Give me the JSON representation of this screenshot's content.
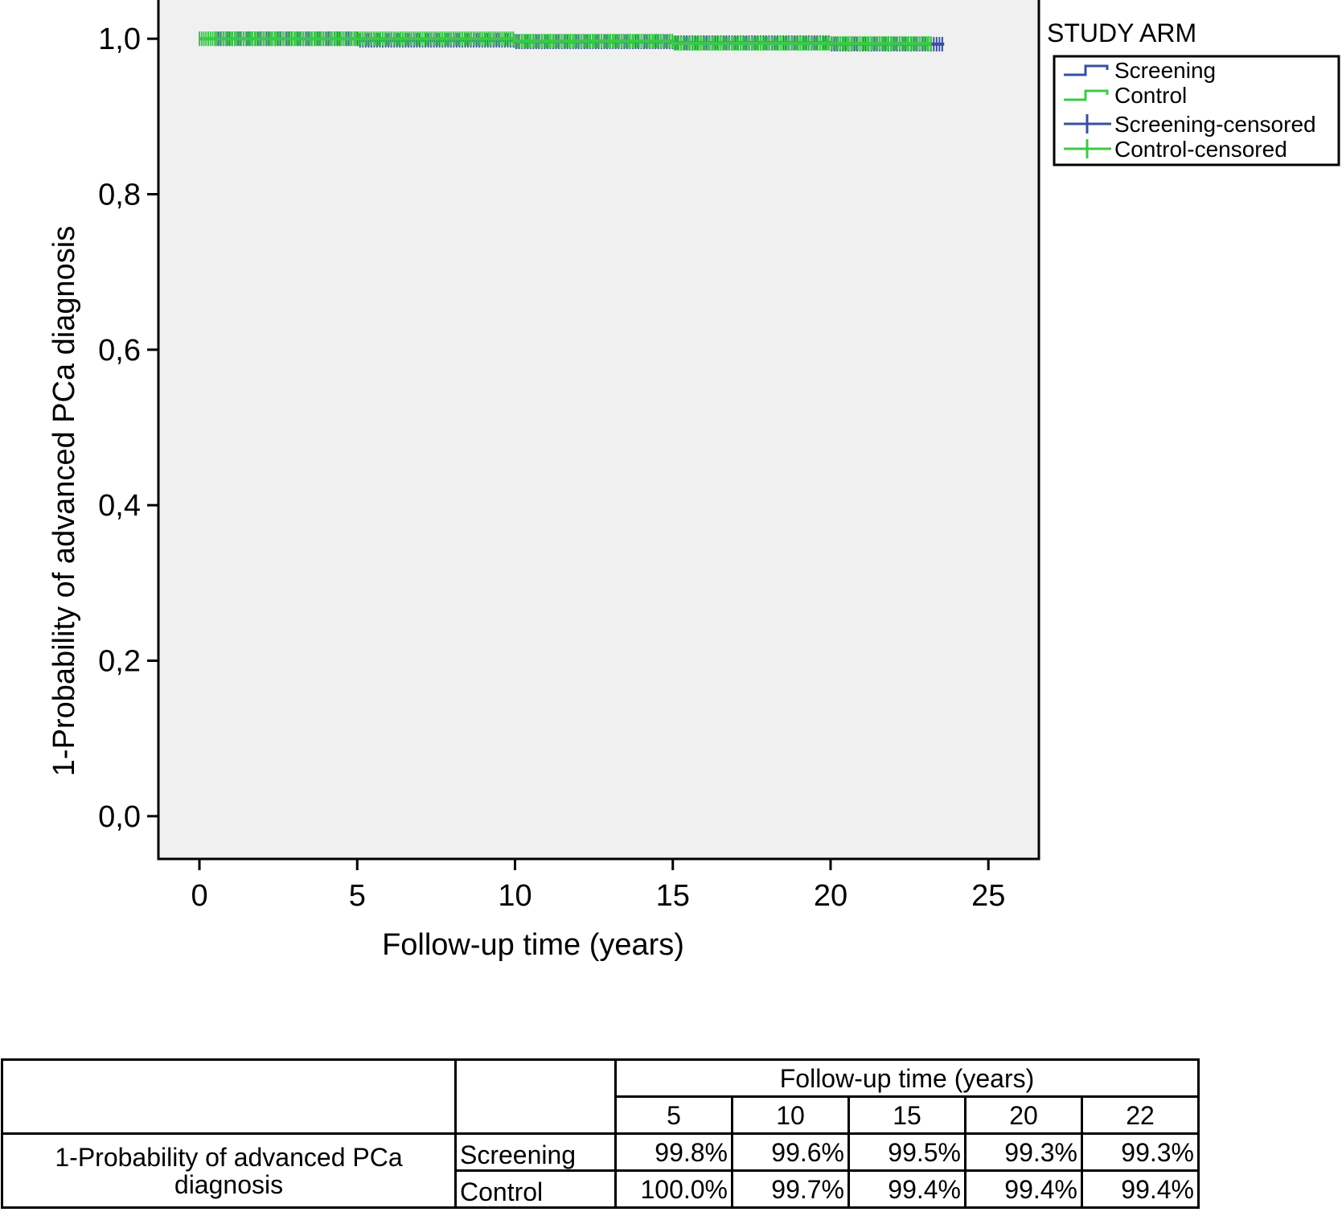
{
  "chart_data": {
    "type": "line",
    "xlabel": "Follow-up time (years)",
    "ylabel": "1-Probability of advanced PCa diagnosis",
    "xlim": [
      -1.3,
      26.6
    ],
    "ylim": [
      -0.055,
      1.055
    ],
    "x_ticks": [
      0,
      5,
      10,
      15,
      20,
      25
    ],
    "x_tick_labels": [
      "0",
      "5",
      "10",
      "15",
      "20",
      "25"
    ],
    "y_ticks": [
      0.0,
      0.2,
      0.4,
      0.6,
      0.8,
      1.0
    ],
    "y_tick_labels": [
      "0,0",
      "0,2",
      "0,4",
      "0,6",
      "0,8",
      "1,0"
    ],
    "grid": false,
    "legend": {
      "title": "STUDY ARM",
      "position": "right",
      "entries": [
        {
          "label": "Screening",
          "kind": "step",
          "color": "#3a4fa0"
        },
        {
          "label": "Control",
          "kind": "step",
          "color": "#3cc84a"
        },
        {
          "label": "Screening-censored",
          "kind": "censor",
          "color": "#3a4fa0"
        },
        {
          "label": "Control-censored",
          "kind": "censor",
          "color": "#3cc84a"
        }
      ]
    },
    "series": [
      {
        "name": "Screening",
        "color": "#3a4fa0",
        "x": [
          0,
          5,
          10,
          15,
          20,
          22,
          23.6
        ],
        "y": [
          1.0,
          0.998,
          0.996,
          0.995,
          0.993,
          0.993,
          0.993
        ],
        "censored_range": [
          0.5,
          23.6
        ]
      },
      {
        "name": "Control",
        "color": "#3cc84a",
        "x": [
          0,
          5,
          10,
          15,
          20,
          22,
          23.2
        ],
        "y": [
          1.0,
          1.0,
          0.997,
          0.994,
          0.994,
          0.994,
          0.994
        ],
        "censored_range": [
          0.0,
          23.2
        ]
      }
    ],
    "plot_background": "#f0f0f0"
  },
  "table": {
    "header": "Follow-up time (years)",
    "time_points": [
      "5",
      "10",
      "15",
      "20",
      "22"
    ],
    "row_label": "1-Probability of advanced PCa diagnosis",
    "rows": [
      {
        "arm": "Screening",
        "values": [
          "99.8%",
          "99.6%",
          "99.5%",
          "99.3%",
          "99.3%"
        ]
      },
      {
        "arm": "Control",
        "values": [
          "100.0%",
          "99.7%",
          "99.4%",
          "99.4%",
          "99.4%"
        ]
      }
    ]
  }
}
